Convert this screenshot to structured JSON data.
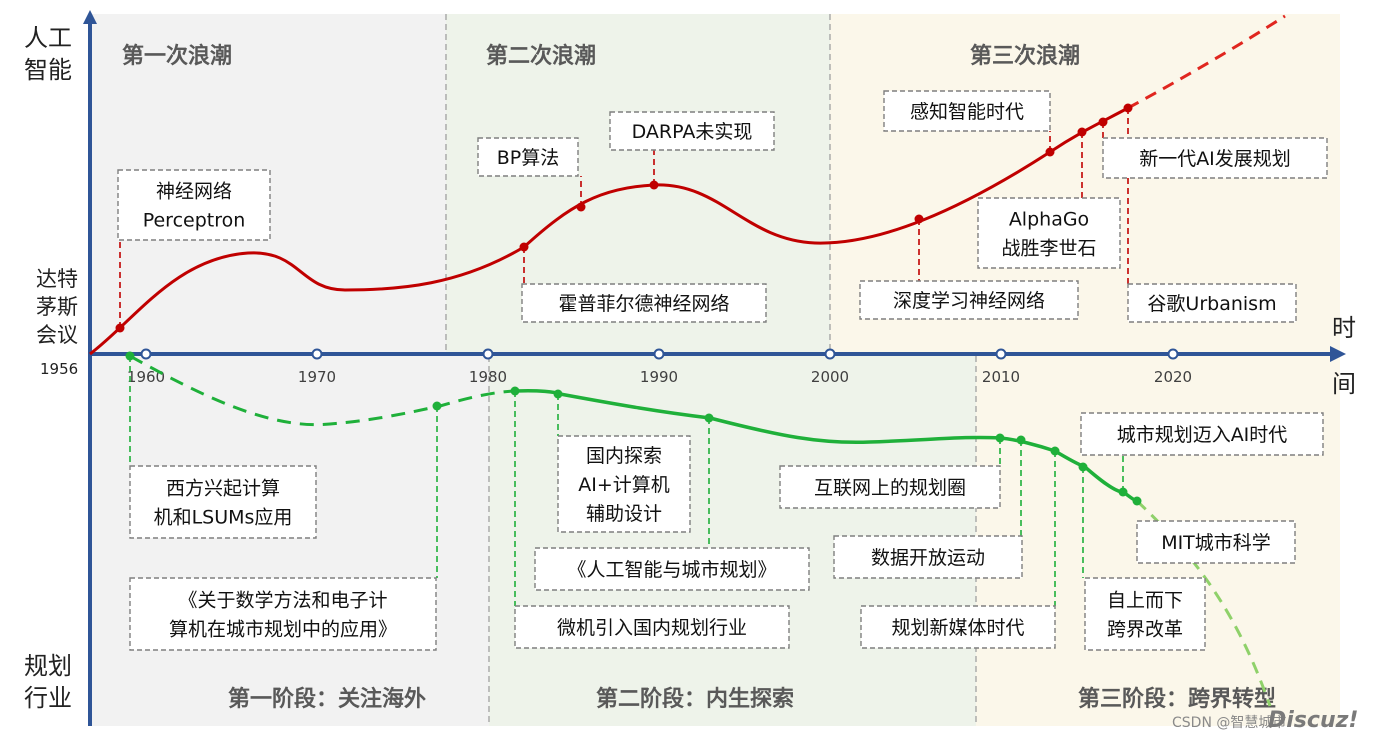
{
  "axes": {
    "y_top_label": [
      "人工",
      "智能"
    ],
    "y_bottom_label": [
      "规划",
      "行业"
    ],
    "x_label": [
      "时",
      "间"
    ],
    "origin_event": [
      "达特",
      "茅斯",
      "会议"
    ],
    "origin_year": "1956",
    "year_ticks": [
      "1960",
      "1970",
      "1980",
      "1990",
      "2000",
      "2010",
      "2020"
    ]
  },
  "waves": [
    "第一次浪潮",
    "第二次浪潮",
    "第三次浪潮"
  ],
  "stages": [
    "第一阶段：关注海外",
    "第二阶段：内生探索",
    "第三阶段：跨界转型"
  ],
  "ai_events": [
    [
      "神经网络",
      "Perceptron"
    ],
    [
      "霍普菲尔德神经网络"
    ],
    [
      "BP算法"
    ],
    [
      "DARPA未实现"
    ],
    [
      "深度学习神经网络"
    ],
    [
      "感知智能时代"
    ],
    [
      "AlphaGo",
      "战胜李世石"
    ],
    [
      "新一代AI发展规划"
    ],
    [
      "谷歌Urbanism"
    ]
  ],
  "planning_events": [
    [
      "西方兴起计算",
      "机和LSUMs应用"
    ],
    [
      "《关于数学方法和电子计",
      "算机在城市规划中的应用》"
    ],
    [
      "微机引入国内规划行业"
    ],
    [
      "国内探索",
      "AI+计算机",
      "辅助设计"
    ],
    [
      "《人工智能与城市规划》"
    ],
    [
      "互联网上的规划圈"
    ],
    [
      "数据开放运动"
    ],
    [
      "规划新媒体时代"
    ],
    [
      "自上而下",
      "跨界改革"
    ],
    [
      "城市规划迈入AI时代"
    ],
    [
      "MIT城市科学"
    ]
  ],
  "watermark": [
    "CSDN @智慧城市",
    "Discuz!"
  ],
  "colors": {
    "axis": "#2f5597",
    "ai_curve": "#c00000",
    "planning_curve": "#1fb03a",
    "planning_curve_light": "#8fd16a",
    "wave1_bg": "#f2f2f2",
    "wave2_bg": "#eef3ea",
    "wave3_bg": "#fbf7ea"
  }
}
